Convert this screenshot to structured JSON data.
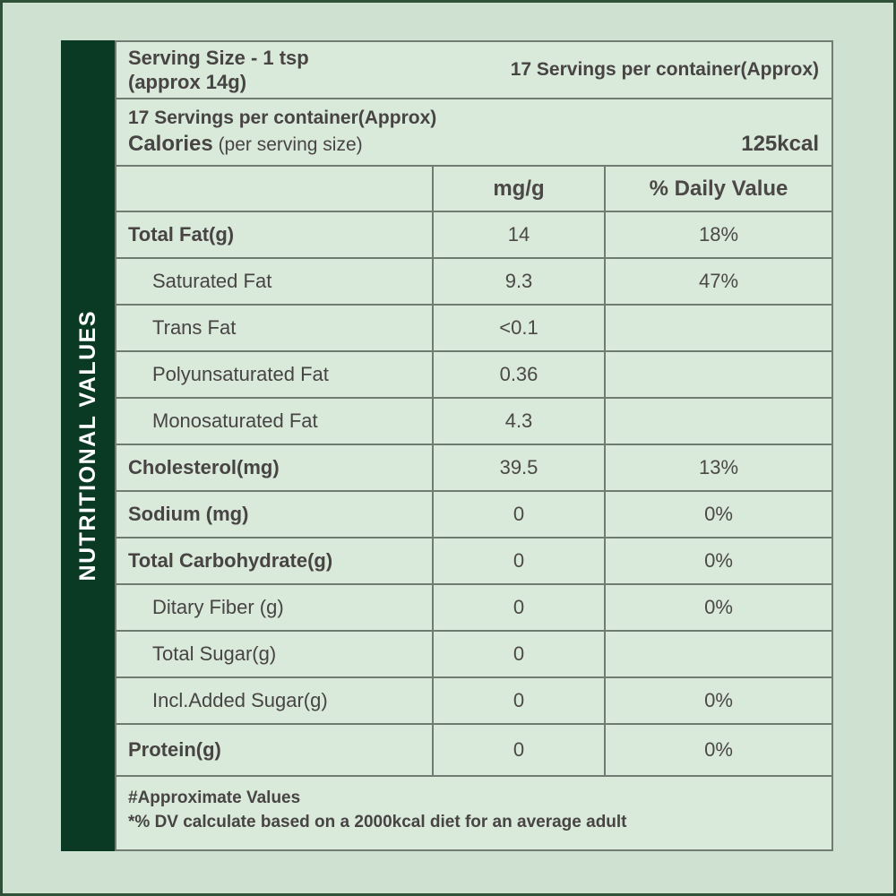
{
  "colors": {
    "page_bg": "#cfe2d1",
    "page_border": "#2e5137",
    "sidebar_bg": "#0b3a24",
    "cell_bg": "#d9e9da",
    "grid_border": "#707b71",
    "text": "#474443"
  },
  "sidebar": {
    "title": "NUTRITIONAL VALUES"
  },
  "serving": {
    "line1": "Serving Size - 1 tsp",
    "line2": "(approx 14g)",
    "servings_right": "17 Servings per container(Approx)"
  },
  "calories": {
    "servings": "17 Servings per container(Approx)",
    "label": "Calories",
    "sub": "(per serving size)",
    "value": "125kcal"
  },
  "table": {
    "headers": {
      "amount": "mg/g",
      "dv": "% Daily Value"
    },
    "rows": [
      {
        "label": "Total Fat(g)",
        "value": "14",
        "dv": "18%"
      },
      {
        "label": "Saturated Fat",
        "value": "9.3",
        "dv": "47%"
      },
      {
        "label": "Trans Fat",
        "value": "<0.1",
        "dv": ""
      },
      {
        "label": "Polyunsaturated Fat",
        "value": "0.36",
        "dv": ""
      },
      {
        "label": "Monosaturated Fat",
        "value": "4.3",
        "dv": ""
      },
      {
        "label": "Cholesterol(mg)",
        "value": "39.5",
        "dv": "13%"
      },
      {
        "label": "Sodium (mg)",
        "value": "0",
        "dv": "0%"
      },
      {
        "label": "Total Carbohydrate(g)",
        "value": "0",
        "dv": "0%"
      },
      {
        "label": "Ditary Fiber (g)",
        "value": "0",
        "dv": "0%"
      },
      {
        "label": "Total Sugar(g)",
        "value": "0",
        "dv": ""
      },
      {
        "label": "Incl.Added Sugar(g)",
        "value": "0",
        "dv": "0%"
      },
      {
        "label": "Protein(g)",
        "value": "0",
        "dv": "0%"
      }
    ]
  },
  "footer": {
    "line1": "#Approximate Values",
    "line2": "*% DV calculate based on a 2000kcal diet for an average adult"
  }
}
